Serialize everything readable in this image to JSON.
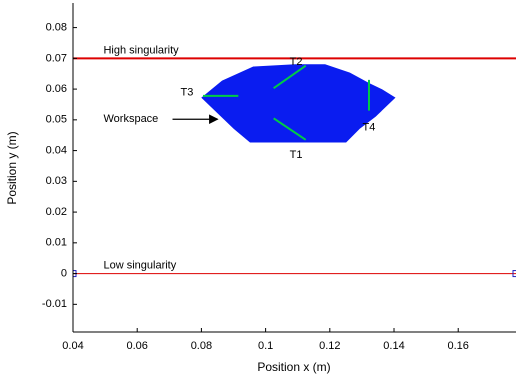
{
  "chart_data": {
    "type": "area",
    "xlabel": "Position x (m)",
    "ylabel": "Position y (m)",
    "xlim": [
      0.04,
      0.178
    ],
    "ylim": [
      -0.019,
      0.088
    ],
    "xticks": [
      0.04,
      0.06,
      0.08,
      0.1,
      0.12,
      0.14,
      0.16
    ],
    "xtick_labels": [
      "0.04",
      "0.06",
      "0.08",
      "0.1",
      "0.12",
      "0.14",
      "0.16"
    ],
    "yticks": [
      -0.01,
      0,
      0.01,
      0.02,
      0.03,
      0.04,
      0.05,
      0.06,
      0.07,
      0.08
    ],
    "ytick_labels": [
      "-0.01",
      "0",
      "0.01",
      "0.02",
      "0.03",
      "0.04",
      "0.05",
      "0.06",
      "0.07",
      "0.08"
    ],
    "grid": false,
    "colors": {
      "workspace": "#0a1cf0",
      "high_line": "#dd0000",
      "low_line": "#dd0000",
      "segments": "#00cc44",
      "low_markers": "#2020c0"
    },
    "high_singularity": {
      "y": 0.07,
      "label": "High singularity",
      "label_x": 0.0495
    },
    "low_singularity": {
      "y": 0.0,
      "label": "Low singularity",
      "label_x": 0.0495,
      "markers_x": [
        0.04,
        0.178
      ]
    },
    "workspace": {
      "label": "Workspace",
      "label_pos": [
        0.0495,
        0.0502
      ],
      "arrow_from": [
        0.071,
        0.0502
      ],
      "arrow_to": [
        0.085,
        0.0502
      ],
      "polygon": [
        [
          0.0802,
          0.0572
        ],
        [
          0.0865,
          0.0626
        ],
        [
          0.0962,
          0.0672
        ],
        [
          0.1092,
          0.0679
        ],
        [
          0.1185,
          0.0679
        ],
        [
          0.1262,
          0.0652
        ],
        [
          0.1322,
          0.0618
        ],
        [
          0.1362,
          0.0598
        ],
        [
          0.1402,
          0.0572
        ],
        [
          0.1342,
          0.0512
        ],
        [
          0.1292,
          0.0472
        ],
        [
          0.125,
          0.0428
        ],
        [
          0.0952,
          0.0428
        ],
        [
          0.0902,
          0.0472
        ],
        [
          0.0852,
          0.0522
        ]
      ]
    },
    "segments": [
      {
        "name": "T1",
        "from": [
          0.1025,
          0.0505
        ],
        "to": [
          0.1125,
          0.0435
        ],
        "label_pos": [
          0.1095,
          0.0385
        ]
      },
      {
        "name": "T2",
        "from": [
          0.1025,
          0.0603
        ],
        "to": [
          0.1125,
          0.0676
        ],
        "label_pos": [
          0.1095,
          0.0688
        ]
      },
      {
        "name": "T3",
        "from": [
          0.0805,
          0.0578
        ],
        "to": [
          0.0915,
          0.0578
        ],
        "label_pos": [
          0.0755,
          0.0588
        ]
      },
      {
        "name": "T4",
        "from": [
          0.1322,
          0.063
        ],
        "to": [
          0.1322,
          0.053
        ],
        "label_pos": [
          0.1322,
          0.0475
        ]
      }
    ]
  }
}
